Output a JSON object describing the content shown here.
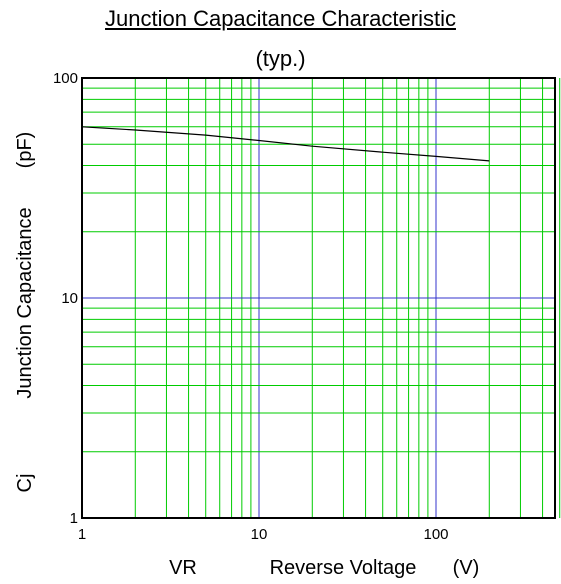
{
  "chart_data": {
    "type": "line",
    "title": "Junction Capacitance Characteristic",
    "subtitle": "(typ.)",
    "xlabel": {
      "symbol": "VR",
      "text": "Reverse Voltage",
      "unit": "(V)"
    },
    "ylabel": {
      "symbol": "Cj",
      "text": "Junction Capacitance",
      "unit": "(pF)"
    },
    "x_scale": "log",
    "y_scale": "log",
    "xlim": [
      1,
      500
    ],
    "ylim": [
      1,
      100
    ],
    "x_ticks": [
      {
        "value": 1,
        "label": "1"
      },
      {
        "value": 10,
        "label": "10"
      },
      {
        "value": 100,
        "label": "100"
      }
    ],
    "y_ticks": [
      {
        "value": 1,
        "label": "1"
      },
      {
        "value": 10,
        "label": "10"
      },
      {
        "value": 100,
        "label": "100"
      }
    ],
    "grid": true,
    "series": [
      {
        "x": [
          1,
          2,
          5,
          10,
          20,
          50,
          100,
          200
        ],
        "y": [
          60,
          58,
          55,
          52,
          49,
          46,
          44,
          42
        ]
      }
    ],
    "colors": {
      "minor_grid": "#00cc00",
      "major_grid": "#3333cc",
      "curve": "#000000",
      "frame": "#000000"
    }
  }
}
